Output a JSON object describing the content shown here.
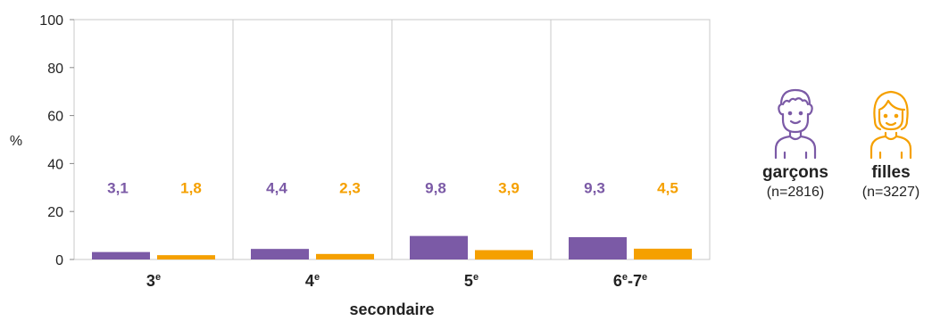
{
  "chart_data": {
    "type": "bar",
    "categories": [
      {
        "base": "3",
        "sup": "e"
      },
      {
        "base": "4",
        "sup": "e"
      },
      {
        "base": "5",
        "sup": "e"
      },
      {
        "base": "6",
        "sup": "e",
        "tail": "-7",
        "sup2": "e"
      }
    ],
    "series": [
      {
        "name": "garçons",
        "n_label": "(n=2816)",
        "color": "#7b5aa6",
        "values": [
          3.1,
          4.4,
          9.8,
          9.3
        ],
        "labels": [
          "3,1",
          "4,4",
          "9,8",
          "9,3"
        ]
      },
      {
        "name": "filles",
        "n_label": "(n=3227)",
        "color": "#f5a000",
        "values": [
          1.8,
          2.3,
          3.9,
          4.5
        ],
        "labels": [
          "1,8",
          "2,3",
          "3,9",
          "4,5"
        ]
      }
    ],
    "ylim": [
      0,
      100
    ],
    "yticks": [
      "0",
      "20",
      "40",
      "60",
      "80",
      "100"
    ],
    "ylabel": "%",
    "xlabel": "secondaire",
    "grid": true,
    "legend_placement": "right"
  }
}
